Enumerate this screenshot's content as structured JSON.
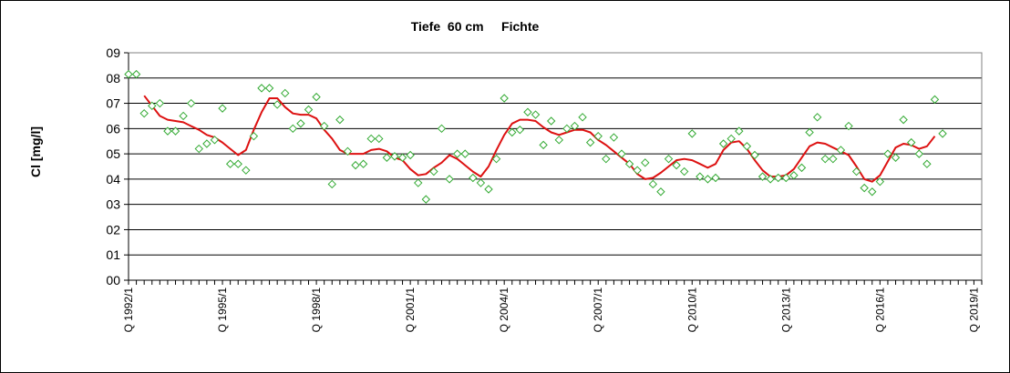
{
  "chart_data": {
    "type": "line",
    "title": "Tiefe  60 cm     Fichte",
    "ylabel": "Cl [mg/l]",
    "xlabel": "",
    "ylim": [
      0,
      9
    ],
    "y_ticks": [
      "00",
      "01",
      "02",
      "03",
      "04",
      "05",
      "06",
      "07",
      "08",
      "09"
    ],
    "x_tick_labels": [
      "Q 1992/1",
      "Q 1995/1",
      "Q 1998/1",
      "Q 2001/1",
      "Q 2004/1",
      "Q 2007/1",
      "Q 2010/1",
      "Q 2013/1",
      "Q 2016/1",
      "Q 2019/1"
    ],
    "grid": "horizontal",
    "x_start": "1992 Q1",
    "x_end": "2019 Q2",
    "series": [
      {
        "kind": "points",
        "marker": "diamond",
        "color": "#33aa33",
        "points": [
          [
            "1992 Q1",
            8.15
          ],
          [
            "1992 Q2",
            8.15
          ],
          [
            "1992 Q3",
            6.6
          ],
          [
            "1992 Q4",
            6.9
          ],
          [
            "1993 Q1",
            7.0
          ],
          [
            "1993 Q2",
            5.9
          ],
          [
            "1993 Q3",
            5.9
          ],
          [
            "1993 Q4",
            6.5
          ],
          [
            "1994 Q1",
            7.0
          ],
          [
            "1994 Q2",
            5.2
          ],
          [
            "1994 Q3",
            5.4
          ],
          [
            "1994 Q4",
            5.55
          ],
          [
            "1995 Q1",
            6.8
          ],
          [
            "1995 Q2",
            4.6
          ],
          [
            "1995 Q3",
            4.6
          ],
          [
            "1995 Q4",
            4.35
          ],
          [
            "1996 Q1",
            5.7
          ],
          [
            "1996 Q2",
            7.6
          ],
          [
            "1996 Q3",
            7.6
          ],
          [
            "1996 Q4",
            6.95
          ],
          [
            "1997 Q1",
            7.4
          ],
          [
            "1997 Q2",
            6.0
          ],
          [
            "1997 Q3",
            6.2
          ],
          [
            "1997 Q4",
            6.75
          ],
          [
            "1998 Q1",
            7.25
          ],
          [
            "1998 Q2",
            6.1
          ],
          [
            "1998 Q3",
            3.8
          ],
          [
            "1998 Q4",
            6.35
          ],
          [
            "1999 Q1",
            5.1
          ],
          [
            "1999 Q2",
            4.55
          ],
          [
            "1999 Q3",
            4.6
          ],
          [
            "1999 Q4",
            5.6
          ],
          [
            "2000 Q1",
            5.6
          ],
          [
            "2000 Q2",
            4.85
          ],
          [
            "2000 Q3",
            4.9
          ],
          [
            "2000 Q4",
            4.85
          ],
          [
            "2001 Q1",
            4.95
          ],
          [
            "2001 Q2",
            3.85
          ],
          [
            "2001 Q3",
            3.2
          ],
          [
            "2001 Q4",
            4.3
          ],
          [
            "2002 Q1",
            6.0
          ],
          [
            "2002 Q2",
            4.0
          ],
          [
            "2002 Q3",
            5.0
          ],
          [
            "2002 Q4",
            5.0
          ],
          [
            "2003 Q1",
            4.05
          ],
          [
            "2003 Q2",
            3.85
          ],
          [
            "2003 Q3",
            3.6
          ],
          [
            "2003 Q4",
            4.8
          ],
          [
            "2004 Q1",
            7.2
          ],
          [
            "2004 Q2",
            5.85
          ],
          [
            "2004 Q3",
            5.95
          ],
          [
            "2004 Q4",
            6.65
          ],
          [
            "2005 Q1",
            6.55
          ],
          [
            "2005 Q2",
            5.35
          ],
          [
            "2005 Q3",
            6.3
          ],
          [
            "2005 Q4",
            5.55
          ],
          [
            "2006 Q1",
            6.0
          ],
          [
            "2006 Q2",
            6.1
          ],
          [
            "2006 Q3",
            6.45
          ],
          [
            "2006 Q4",
            5.45
          ],
          [
            "2007 Q1",
            5.7
          ],
          [
            "2007 Q2",
            4.8
          ],
          [
            "2007 Q3",
            5.65
          ],
          [
            "2007 Q4",
            5.0
          ],
          [
            "2008 Q1",
            4.6
          ],
          [
            "2008 Q2",
            4.35
          ],
          [
            "2008 Q3",
            4.65
          ],
          [
            "2008 Q4",
            3.8
          ],
          [
            "2009 Q1",
            3.5
          ],
          [
            "2009 Q2",
            4.8
          ],
          [
            "2009 Q3",
            4.55
          ],
          [
            "2009 Q4",
            4.3
          ],
          [
            "2010 Q1",
            5.8
          ],
          [
            "2010 Q2",
            4.1
          ],
          [
            "2010 Q3",
            4.0
          ],
          [
            "2010 Q4",
            4.05
          ],
          [
            "2011 Q1",
            5.4
          ],
          [
            "2011 Q2",
            5.6
          ],
          [
            "2011 Q3",
            5.9
          ],
          [
            "2011 Q4",
            5.3
          ],
          [
            "2012 Q1",
            4.95
          ],
          [
            "2012 Q2",
            4.1
          ],
          [
            "2012 Q3",
            4.0
          ],
          [
            "2012 Q4",
            4.05
          ],
          [
            "2013 Q1",
            4.05
          ],
          [
            "2013 Q2",
            4.15
          ],
          [
            "2013 Q3",
            4.45
          ],
          [
            "2013 Q4",
            5.85
          ],
          [
            "2014 Q1",
            6.45
          ],
          [
            "2014 Q2",
            4.8
          ],
          [
            "2014 Q3",
            4.8
          ],
          [
            "2014 Q4",
            5.15
          ],
          [
            "2015 Q1",
            6.1
          ],
          [
            "2015 Q2",
            4.3
          ],
          [
            "2015 Q3",
            3.65
          ],
          [
            "2015 Q4",
            3.5
          ],
          [
            "2016 Q1",
            3.9
          ],
          [
            "2016 Q2",
            5.0
          ],
          [
            "2016 Q3",
            4.85
          ],
          [
            "2016 Q4",
            6.35
          ],
          [
            "2017 Q1",
            5.45
          ],
          [
            "2017 Q2",
            5.0
          ],
          [
            "2017 Q3",
            4.6
          ],
          [
            "2017 Q4",
            7.15
          ],
          [
            "2018 Q1",
            5.8
          ]
        ]
      },
      {
        "kind": "line",
        "color": "#dd1111",
        "points": [
          [
            "1992 Q3",
            7.3
          ],
          [
            "1992 Q4",
            6.9
          ],
          [
            "1993 Q1",
            6.5
          ],
          [
            "1993 Q2",
            6.35
          ],
          [
            "1993 Q3",
            6.3
          ],
          [
            "1993 Q4",
            6.25
          ],
          [
            "1994 Q1",
            6.1
          ],
          [
            "1994 Q2",
            5.95
          ],
          [
            "1994 Q3",
            5.75
          ],
          [
            "1994 Q4",
            5.65
          ],
          [
            "1995 Q1",
            5.45
          ],
          [
            "1995 Q2",
            5.2
          ],
          [
            "1995 Q3",
            4.95
          ],
          [
            "1995 Q4",
            5.15
          ],
          [
            "1996 Q1",
            5.95
          ],
          [
            "1996 Q2",
            6.65
          ],
          [
            "1996 Q3",
            7.2
          ],
          [
            "1996 Q4",
            7.2
          ],
          [
            "1997 Q1",
            6.85
          ],
          [
            "1997 Q2",
            6.6
          ],
          [
            "1997 Q3",
            6.55
          ],
          [
            "1997 Q4",
            6.55
          ],
          [
            "1998 Q1",
            6.4
          ],
          [
            "1998 Q2",
            5.95
          ],
          [
            "1998 Q3",
            5.6
          ],
          [
            "1998 Q4",
            5.15
          ],
          [
            "1999 Q1",
            5.0
          ],
          [
            "1999 Q2",
            5.0
          ],
          [
            "1999 Q3",
            5.0
          ],
          [
            "1999 Q4",
            5.15
          ],
          [
            "2000 Q1",
            5.2
          ],
          [
            "2000 Q2",
            5.1
          ],
          [
            "2000 Q3",
            4.85
          ],
          [
            "2000 Q4",
            4.75
          ],
          [
            "2001 Q1",
            4.4
          ],
          [
            "2001 Q2",
            4.15
          ],
          [
            "2001 Q3",
            4.2
          ],
          [
            "2001 Q4",
            4.45
          ],
          [
            "2002 Q1",
            4.65
          ],
          [
            "2002 Q2",
            4.95
          ],
          [
            "2002 Q3",
            4.8
          ],
          [
            "2002 Q4",
            4.55
          ],
          [
            "2003 Q1",
            4.3
          ],
          [
            "2003 Q2",
            4.1
          ],
          [
            "2003 Q3",
            4.5
          ],
          [
            "2003 Q4",
            5.15
          ],
          [
            "2004 Q1",
            5.75
          ],
          [
            "2004 Q2",
            6.2
          ],
          [
            "2004 Q3",
            6.35
          ],
          [
            "2004 Q4",
            6.35
          ],
          [
            "2005 Q1",
            6.3
          ],
          [
            "2005 Q2",
            6.05
          ],
          [
            "2005 Q3",
            5.85
          ],
          [
            "2005 Q4",
            5.75
          ],
          [
            "2006 Q1",
            5.85
          ],
          [
            "2006 Q2",
            5.95
          ],
          [
            "2006 Q3",
            5.95
          ],
          [
            "2006 Q4",
            5.85
          ],
          [
            "2007 Q1",
            5.55
          ],
          [
            "2007 Q2",
            5.35
          ],
          [
            "2007 Q3",
            5.1
          ],
          [
            "2007 Q4",
            4.85
          ],
          [
            "2008 Q1",
            4.6
          ],
          [
            "2008 Q2",
            4.2
          ],
          [
            "2008 Q3",
            4.0
          ],
          [
            "2008 Q4",
            4.05
          ],
          [
            "2009 Q1",
            4.25
          ],
          [
            "2009 Q2",
            4.5
          ],
          [
            "2009 Q3",
            4.75
          ],
          [
            "2009 Q4",
            4.8
          ],
          [
            "2010 Q1",
            4.75
          ],
          [
            "2010 Q2",
            4.6
          ],
          [
            "2010 Q3",
            4.45
          ],
          [
            "2010 Q4",
            4.6
          ],
          [
            "2011 Q1",
            5.15
          ],
          [
            "2011 Q2",
            5.45
          ],
          [
            "2011 Q3",
            5.5
          ],
          [
            "2011 Q4",
            5.2
          ],
          [
            "2012 Q1",
            4.75
          ],
          [
            "2012 Q2",
            4.35
          ],
          [
            "2012 Q3",
            4.1
          ],
          [
            "2012 Q4",
            4.1
          ],
          [
            "2013 Q1",
            4.15
          ],
          [
            "2013 Q2",
            4.4
          ],
          [
            "2013 Q3",
            4.85
          ],
          [
            "2013 Q4",
            5.3
          ],
          [
            "2014 Q1",
            5.45
          ],
          [
            "2014 Q2",
            5.4
          ],
          [
            "2014 Q3",
            5.25
          ],
          [
            "2014 Q4",
            5.1
          ],
          [
            "2015 Q1",
            4.95
          ],
          [
            "2015 Q2",
            4.5
          ],
          [
            "2015 Q3",
            4.0
          ],
          [
            "2015 Q4",
            3.9
          ],
          [
            "2016 Q1",
            4.15
          ],
          [
            "2016 Q2",
            4.7
          ],
          [
            "2016 Q3",
            5.25
          ],
          [
            "2016 Q4",
            5.4
          ],
          [
            "2017 Q1",
            5.35
          ],
          [
            "2017 Q2",
            5.2
          ],
          [
            "2017 Q3",
            5.3
          ],
          [
            "2017 Q4",
            5.7
          ]
        ]
      }
    ]
  }
}
